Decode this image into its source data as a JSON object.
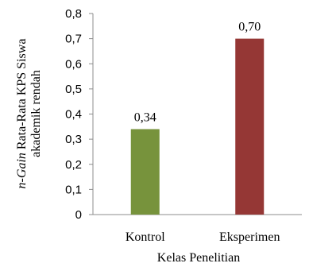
{
  "chart_data": {
    "type": "bar",
    "categories": [
      "Kontrol",
      "Eksperimen"
    ],
    "values": [
      0.34,
      0.7
    ],
    "data_labels": [
      "0,34",
      "0,70"
    ],
    "bar_colors": [
      "#77933c",
      "#953735"
    ],
    "ylim": [
      0,
      0.8
    ],
    "yticks": [
      0,
      0.1,
      0.2,
      0.3,
      0.4,
      0.5,
      0.6,
      0.7,
      0.8
    ],
    "ytick_labels": [
      "0",
      "0,1",
      "0,2",
      "0,3",
      "0,4",
      "0,5",
      "0,6",
      "0,7",
      "0,8"
    ],
    "xlabel": "Kelas Penelitian",
    "ylabel_italic": "n-Gain",
    "ylabel_line1": " Rata-Rata KPS Siswa",
    "ylabel_line2": "akademik rendah",
    "grid": false,
    "legend": "none"
  }
}
